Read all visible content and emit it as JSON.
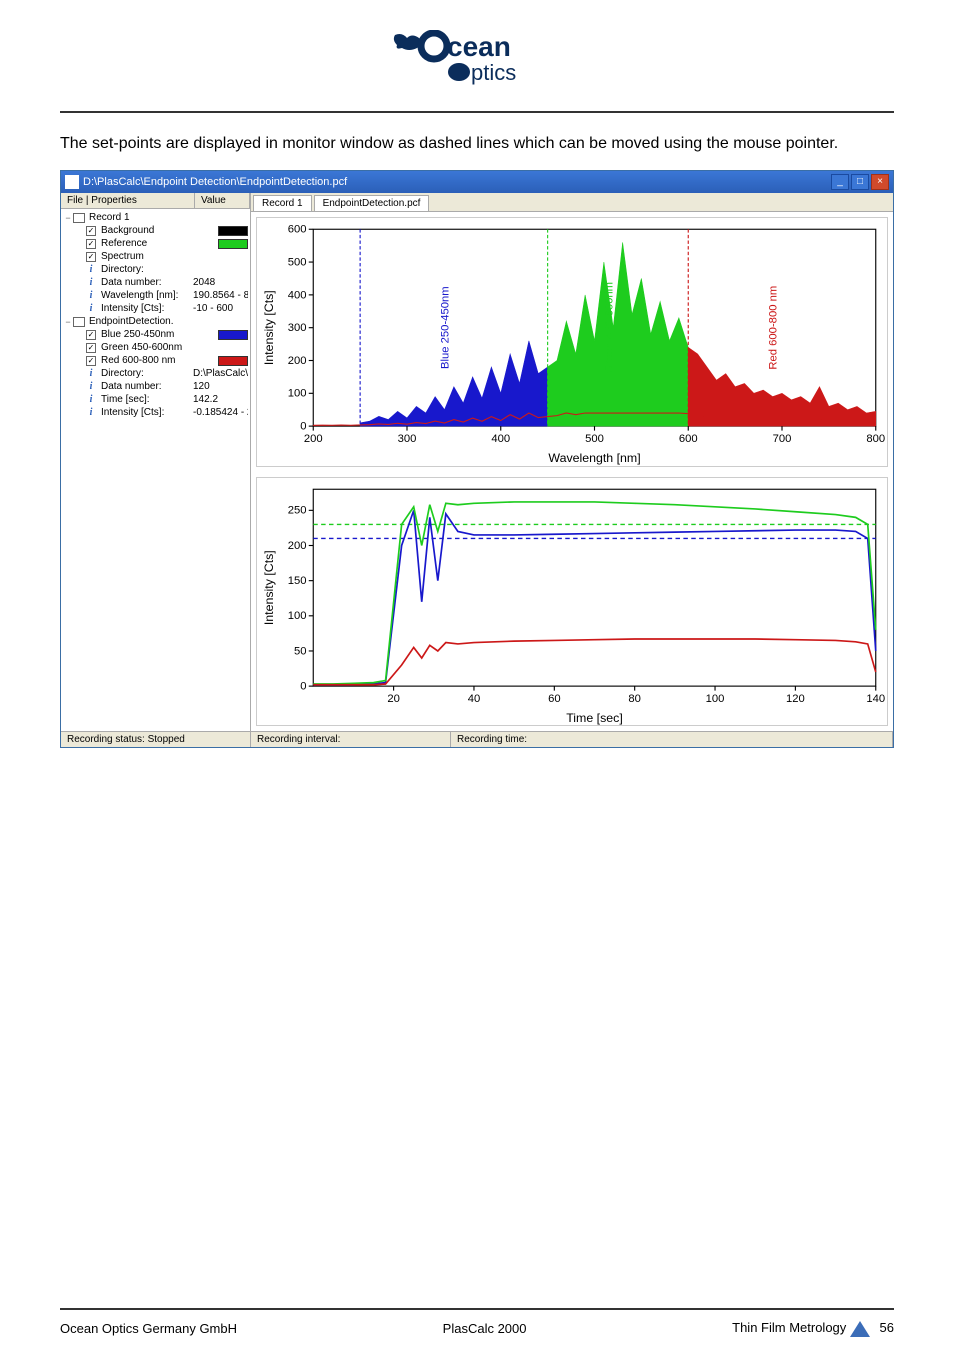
{
  "logo": {
    "line1": "cean",
    "line2": "ptics"
  },
  "body_text": "The set-points are displayed in monitor window as dashed lines which can be moved using the mouse pointer.",
  "window": {
    "title": "D:\\PlasCalc\\Endpoint Detection\\EndpointDetection.pcf",
    "sidebar_header": {
      "col1": "File | Properties",
      "col2": "Value"
    },
    "tree": [
      {
        "level": 0,
        "type": "node",
        "exp": "−",
        "icon": "chart",
        "label": "Record 1",
        "val": ""
      },
      {
        "level": 1,
        "type": "chk",
        "checked": true,
        "label": "Background",
        "swatch": "#000000"
      },
      {
        "level": 1,
        "type": "chk",
        "checked": true,
        "label": "Reference",
        "swatch": "#1ecc1e"
      },
      {
        "level": 1,
        "type": "chk",
        "checked": true,
        "label": "Spectrum",
        "val": ""
      },
      {
        "level": 1,
        "type": "info",
        "label": "Directory:",
        "val": ""
      },
      {
        "level": 1,
        "type": "info",
        "label": "Data number:",
        "val": "2048"
      },
      {
        "level": 1,
        "type": "info",
        "label": "Wavelength [nm]:",
        "val": "190.8564 - 8"
      },
      {
        "level": 1,
        "type": "info",
        "label": "Intensity [Cts]:",
        "val": "-10 - 600"
      },
      {
        "level": 0,
        "type": "node",
        "exp": "−",
        "icon": "chart",
        "label": "EndpointDetection.",
        "val": ""
      },
      {
        "level": 1,
        "type": "chk",
        "checked": true,
        "label": "Blue 250-450nm",
        "swatch": "#1818cc"
      },
      {
        "level": 1,
        "type": "chk",
        "checked": true,
        "label": "Green 450-600nm",
        "val": ""
      },
      {
        "level": 1,
        "type": "chk",
        "checked": true,
        "label": "Red 600-800 nm",
        "swatch": "#cc1818"
      },
      {
        "level": 1,
        "type": "info",
        "label": "Directory:",
        "val": "D:\\PlasCalc\\"
      },
      {
        "level": 1,
        "type": "info",
        "label": "Data number:",
        "val": "120"
      },
      {
        "level": 1,
        "type": "info",
        "label": "Time [sec]:",
        "val": "142.2"
      },
      {
        "level": 1,
        "type": "info",
        "label": "Intensity [Cts]:",
        "val": "-0.185424 - 2"
      }
    ],
    "tabs": [
      "Record 1",
      "EndpointDetection.pcf"
    ],
    "chart1": {
      "type": "area-spectrum",
      "ylabel": "Intensity [Cts]",
      "xlabel": "Wavelength [nm]",
      "xlim": [
        200,
        800
      ],
      "ylim": [
        0,
        600
      ],
      "xticks": [
        200,
        300,
        400,
        500,
        600,
        700,
        800
      ],
      "yticks": [
        0,
        100,
        200,
        300,
        400,
        500,
        600
      ],
      "regions": [
        {
          "label": "Blue 250-450nm",
          "xstart": 250,
          "xend": 450,
          "color": "#1818cc",
          "label_color": "#1818cc"
        },
        {
          "label": "Green 450-600nm",
          "xstart": 450,
          "xend": 600,
          "color": "#1ecc1e",
          "label_color": "#1ecc1e"
        },
        {
          "label": "Red 600-800 nm",
          "xstart": 600,
          "xend": 800,
          "color": "#cc1818",
          "label_color": "#cc1818"
        }
      ],
      "spectrum": [
        [
          200,
          2
        ],
        [
          210,
          5
        ],
        [
          220,
          3
        ],
        [
          230,
          8
        ],
        [
          240,
          4
        ],
        [
          250,
          10
        ],
        [
          260,
          15
        ],
        [
          270,
          30
        ],
        [
          280,
          20
        ],
        [
          290,
          45
        ],
        [
          300,
          25
        ],
        [
          310,
          60
        ],
        [
          320,
          40
        ],
        [
          330,
          90
        ],
        [
          340,
          50
        ],
        [
          350,
          120
        ],
        [
          360,
          70
        ],
        [
          370,
          150
        ],
        [
          380,
          85
        ],
        [
          390,
          180
        ],
        [
          400,
          100
        ],
        [
          410,
          220
        ],
        [
          420,
          130
        ],
        [
          430,
          260
        ],
        [
          440,
          160
        ],
        [
          450,
          180
        ],
        [
          460,
          200
        ],
        [
          470,
          320
        ],
        [
          480,
          220
        ],
        [
          490,
          400
        ],
        [
          500,
          260
        ],
        [
          510,
          500
        ],
        [
          520,
          300
        ],
        [
          530,
          560
        ],
        [
          540,
          340
        ],
        [
          550,
          450
        ],
        [
          560,
          280
        ],
        [
          570,
          380
        ],
        [
          580,
          260
        ],
        [
          590,
          330
        ],
        [
          600,
          240
        ],
        [
          610,
          220
        ],
        [
          620,
          180
        ],
        [
          630,
          140
        ],
        [
          640,
          160
        ],
        [
          650,
          120
        ],
        [
          660,
          130
        ],
        [
          670,
          100
        ],
        [
          680,
          110
        ],
        [
          690,
          90
        ],
        [
          700,
          100
        ],
        [
          710,
          80
        ],
        [
          720,
          90
        ],
        [
          730,
          70
        ],
        [
          740,
          120
        ],
        [
          750,
          60
        ],
        [
          760,
          70
        ],
        [
          770,
          50
        ],
        [
          780,
          60
        ],
        [
          790,
          40
        ],
        [
          800,
          45
        ]
      ],
      "ref_line_color": "#cc1818",
      "plot_bg": "#ffffff",
      "axis_color": "#000000",
      "label_fontsize": 11
    },
    "chart2": {
      "type": "line",
      "ylabel": "Intensity [Cts]",
      "xlabel": "Time [sec]",
      "xlim": [
        0,
        140
      ],
      "ylim": [
        0,
        280
      ],
      "xticks": [
        20,
        40,
        60,
        80,
        100,
        120,
        140
      ],
      "yticks": [
        0,
        50,
        100,
        150,
        200,
        250
      ],
      "setpoints": [
        {
          "y": 210,
          "color": "#1818cc",
          "dash": "4,3"
        },
        {
          "y": 230,
          "color": "#1ecc1e",
          "dash": "4,3"
        }
      ],
      "series": [
        {
          "color": "#1818cc",
          "data": [
            [
              0,
              2
            ],
            [
              5,
              2
            ],
            [
              10,
              2
            ],
            [
              15,
              3
            ],
            [
              18,
              5
            ],
            [
              22,
              200
            ],
            [
              25,
              250
            ],
            [
              27,
              120
            ],
            [
              29,
              240
            ],
            [
              31,
              150
            ],
            [
              33,
              245
            ],
            [
              36,
              220
            ],
            [
              40,
              215
            ],
            [
              50,
              215
            ],
            [
              60,
              216
            ],
            [
              70,
              217
            ],
            [
              80,
              218
            ],
            [
              90,
              219
            ],
            [
              100,
              220
            ],
            [
              110,
              221
            ],
            [
              120,
              222
            ],
            [
              130,
              222
            ],
            [
              135,
              220
            ],
            [
              138,
              210
            ],
            [
              140,
              50
            ]
          ]
        },
        {
          "color": "#1ecc1e",
          "data": [
            [
              0,
              3
            ],
            [
              5,
              3
            ],
            [
              10,
              4
            ],
            [
              15,
              5
            ],
            [
              18,
              8
            ],
            [
              22,
              230
            ],
            [
              25,
              255
            ],
            [
              27,
              200
            ],
            [
              29,
              258
            ],
            [
              31,
              220
            ],
            [
              33,
              260
            ],
            [
              36,
              258
            ],
            [
              40,
              260
            ],
            [
              50,
              262
            ],
            [
              60,
              262
            ],
            [
              70,
              262
            ],
            [
              80,
              260
            ],
            [
              90,
              258
            ],
            [
              100,
              255
            ],
            [
              110,
              252
            ],
            [
              120,
              248
            ],
            [
              130,
              244
            ],
            [
              135,
              240
            ],
            [
              138,
              230
            ],
            [
              140,
              80
            ]
          ]
        },
        {
          "color": "#cc1818",
          "data": [
            [
              0,
              2
            ],
            [
              5,
              2
            ],
            [
              10,
              2
            ],
            [
              15,
              2
            ],
            [
              18,
              3
            ],
            [
              22,
              30
            ],
            [
              25,
              55
            ],
            [
              27,
              40
            ],
            [
              29,
              58
            ],
            [
              31,
              50
            ],
            [
              33,
              62
            ],
            [
              36,
              60
            ],
            [
              40,
              62
            ],
            [
              50,
              64
            ],
            [
              60,
              65
            ],
            [
              70,
              66
            ],
            [
              80,
              67
            ],
            [
              90,
              67
            ],
            [
              100,
              67
            ],
            [
              110,
              67
            ],
            [
              120,
              66
            ],
            [
              130,
              65
            ],
            [
              135,
              63
            ],
            [
              138,
              60
            ],
            [
              140,
              20
            ]
          ]
        }
      ],
      "plot_bg": "#ffffff",
      "axis_color": "#000000",
      "label_fontsize": 11
    },
    "statusbar": {
      "status": "Recording status: Stopped",
      "interval": "Recording interval:",
      "time": "Recording time:"
    }
  },
  "footer": {
    "left": "Ocean Optics Germany GmbH",
    "center": "PlasCalc 2000",
    "right": "Thin Film Metrology",
    "page": "56"
  }
}
